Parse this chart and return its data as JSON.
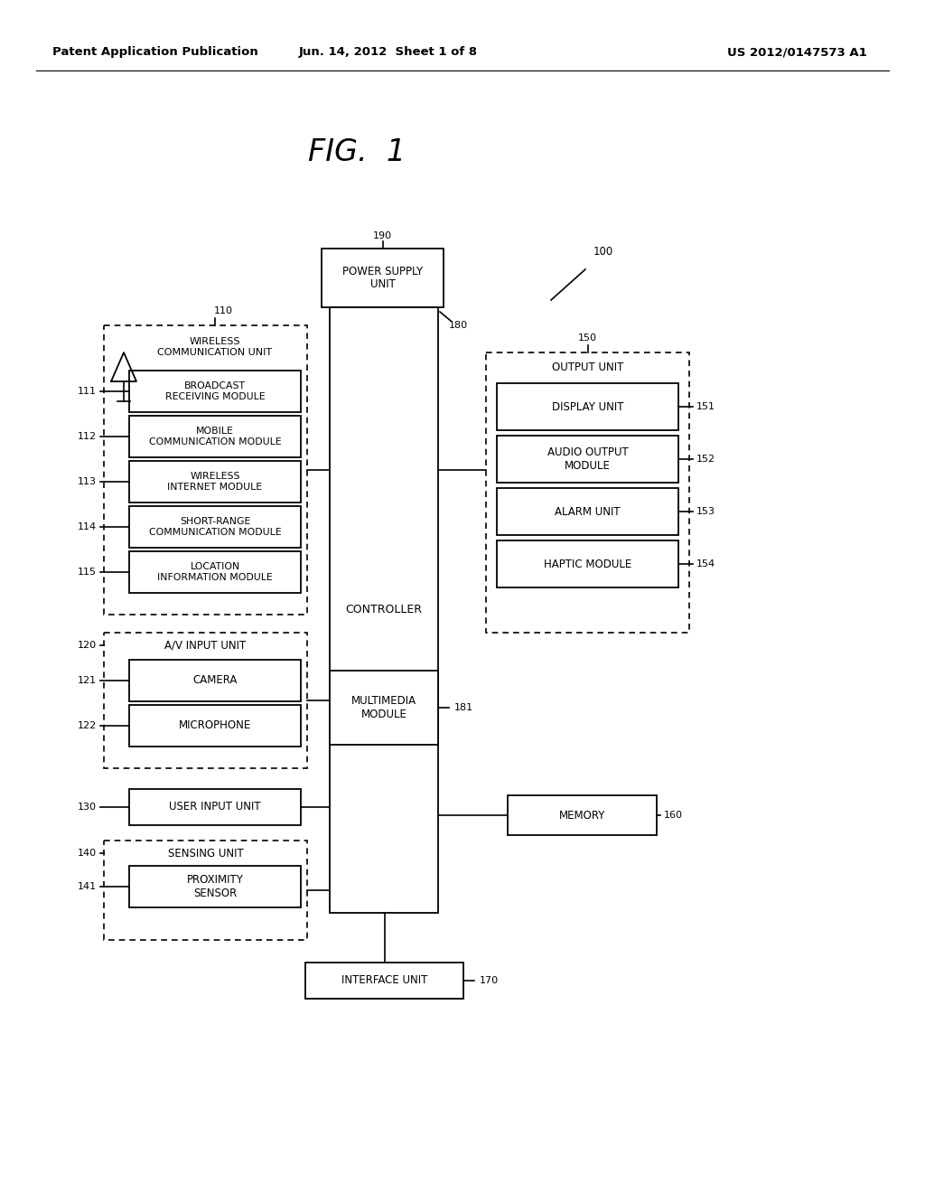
{
  "title": "FIG.  1",
  "header_left": "Patent Application Publication",
  "header_center": "Jun. 14, 2012  Sheet 1 of 8",
  "header_right": "US 2012/0147573 A1",
  "background": "#ffffff",
  "box_power_supply": "POWER SUPPLY\nUNIT",
  "box_wireless_comm": "WIRELESS\nCOMMUNICATION UNIT",
  "box_broadcast": "BROADCAST\nRECEIVING MODULE",
  "box_mobile_comm": "MOBILE\nCOMMUNICATION MODULE",
  "box_wireless_internet": "WIRELESS\nINTERNET MODULE",
  "box_short_range": "SHORT-RANGE\nCOMMUNICATION MODULE",
  "box_location": "LOCATION\nINFORMATION MODULE",
  "box_av_input": "A/V INPUT UNIT",
  "box_camera": "CAMERA",
  "box_microphone": "MICROPHONE",
  "box_user_input": "USER INPUT UNIT",
  "box_sensing": "SENSING UNIT",
  "box_proximity": "PROXIMITY\nSENSOR",
  "box_controller": "CONTROLLER",
  "box_output_unit": "OUTPUT UNIT",
  "box_display": "DISPLAY UNIT",
  "box_audio": "AUDIO OUTPUT\nMODULE",
  "box_alarm": "ALARM UNIT",
  "box_haptic": "HAPTIC MODULE",
  "box_multimedia": "MULTIMEDIA\nMODULE",
  "box_memory": "MEMORY",
  "box_interface": "INTERFACE UNIT",
  "lbl_100": "100",
  "lbl_110": "110",
  "lbl_111": "111",
  "lbl_112": "112",
  "lbl_113": "113",
  "lbl_114": "114",
  "lbl_115": "115",
  "lbl_120": "120",
  "lbl_121": "121",
  "lbl_122": "122",
  "lbl_130": "130",
  "lbl_140": "140",
  "lbl_141": "141",
  "lbl_150": "150",
  "lbl_151": "151",
  "lbl_152": "152",
  "lbl_153": "153",
  "lbl_154": "154",
  "lbl_160": "160",
  "lbl_170": "170",
  "lbl_180": "180",
  "lbl_181": "181",
  "lbl_190": "190"
}
